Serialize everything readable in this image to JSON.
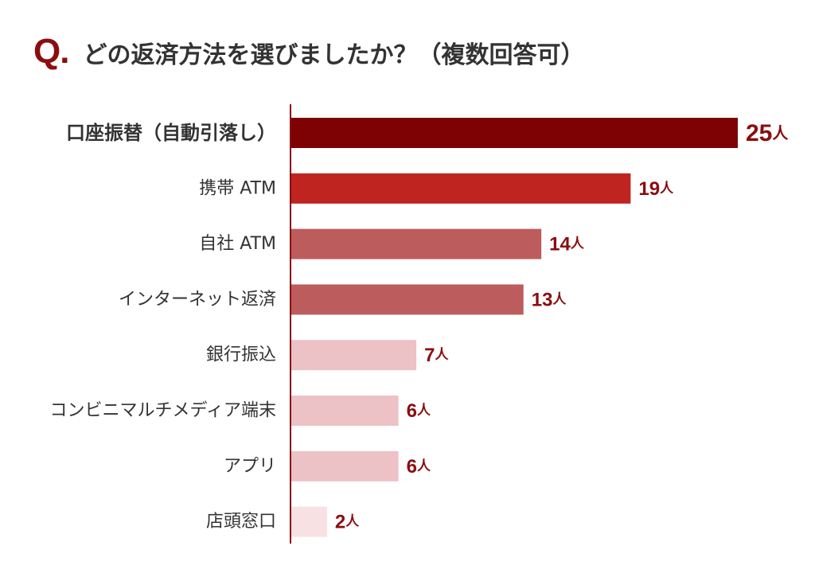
{
  "question": {
    "prefix": "Q.",
    "text": "どの返済方法を選びましたか？（複数回答可）"
  },
  "colors": {
    "title_q": "#8b0d0f",
    "axis": "#8b0d0f",
    "value_label": "#8b0d0f",
    "category_label": "#333333"
  },
  "chart_data": {
    "type": "bar",
    "orientation": "horizontal",
    "title": "どの返済方法を選びましたか？（複数回答可）",
    "xlabel": "",
    "ylabel": "",
    "unit": "人",
    "grid": false,
    "legend": "none",
    "xlim": [
      0,
      25
    ],
    "categories": [
      "口座振替（自動引落し）",
      "携帯 ATM",
      "自社 ATM",
      "インターネット返済",
      "銀行振込",
      "コンビニマルチメディア端末",
      "アプリ",
      "店頭窓口"
    ],
    "values": [
      25,
      19,
      14,
      13,
      7,
      6,
      6,
      2
    ],
    "bar_colors": [
      "#7e0203",
      "#bf2420",
      "#bd5c5c",
      "#bd5c5c",
      "#ecc2c6",
      "#ecc2c6",
      "#ecc2c6",
      "#f7e1e3"
    ],
    "emphasized_index": 0
  }
}
